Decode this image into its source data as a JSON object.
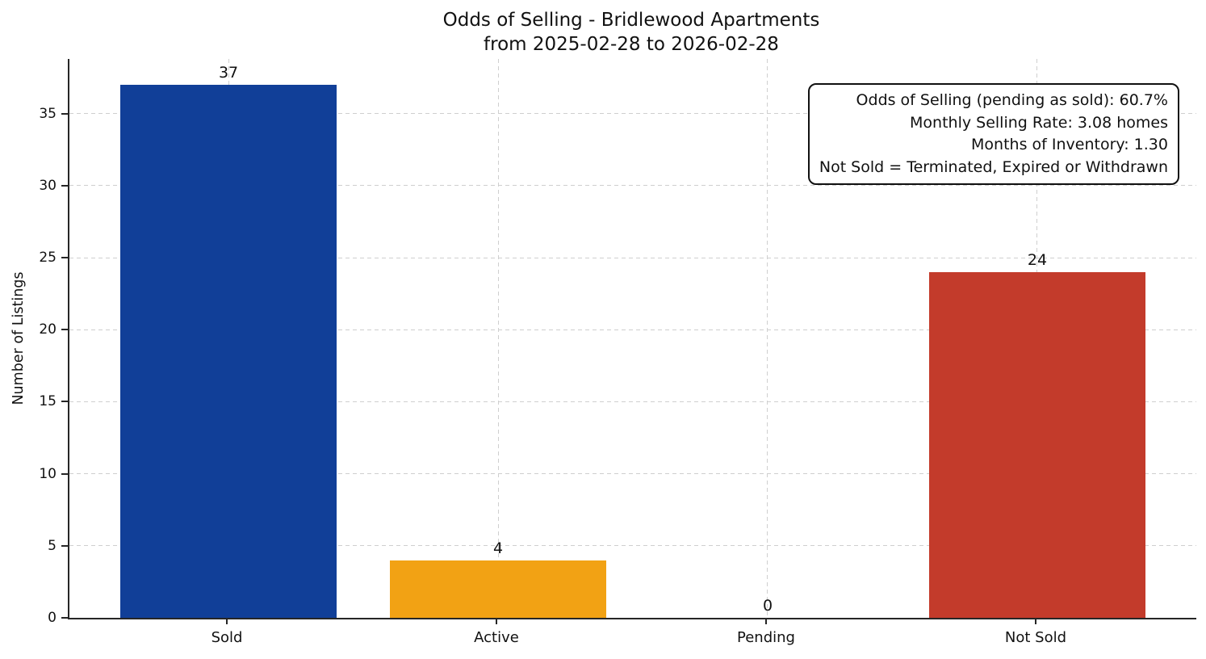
{
  "chart_data": {
    "type": "bar",
    "title": "Odds of Selling - Bridlewood Apartments",
    "subtitle": "from 2025-02-28 to 2026-02-28",
    "categories": [
      "Sold",
      "Active",
      "Pending",
      "Not Sold"
    ],
    "values": [
      37,
      4,
      0,
      24
    ],
    "bar_colors": [
      "#113f98",
      "#f2a214",
      "#808080",
      "#c33b2b"
    ],
    "xlabel": "",
    "ylabel": "Number of Listings",
    "yticks": [
      0,
      5,
      10,
      15,
      20,
      25,
      30,
      35
    ],
    "ylim": [
      0,
      38.8
    ],
    "xlim": [
      -0.59,
      3.59
    ],
    "bar_width": 0.8,
    "grid": "dashed, horizontal and vertical, light gray",
    "legend": "none",
    "annotation_lines": [
      "Odds of Selling (pending as sold): 60.7%",
      "Monthly Selling Rate: 3.08 homes",
      "Months of Inventory: 1.30",
      "Not Sold = Terminated, Expired or Withdrawn"
    ]
  },
  "colors": {
    "axis": "#262626",
    "grid": "#cfcfcf",
    "text": "#111111",
    "background": "#ffffff",
    "sold_bar": "#113f98",
    "active_bar": "#f2a214",
    "not_sold_bar": "#c33b2b"
  }
}
